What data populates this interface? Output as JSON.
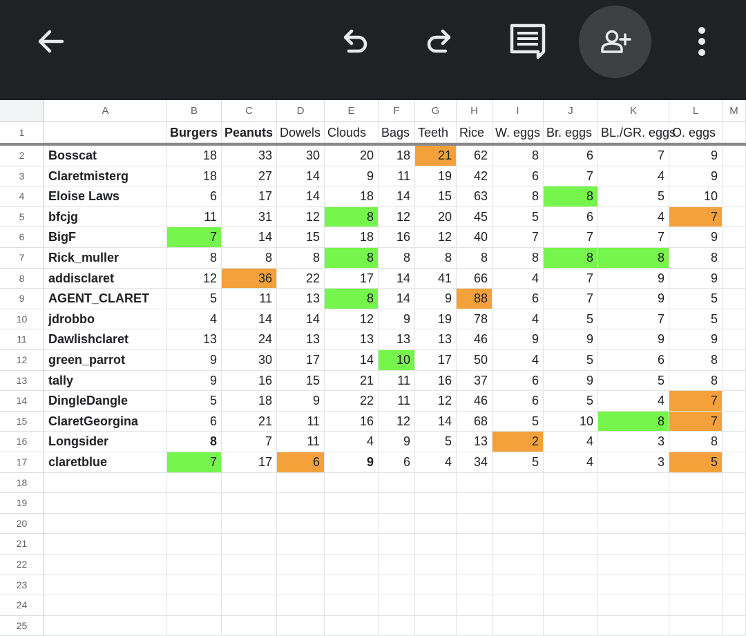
{
  "toolbar": {
    "icons": {
      "back": "arrow-back-icon",
      "undo": "undo-icon",
      "redo": "redo-icon",
      "comment": "comment-icon",
      "share": "person-add-icon",
      "more": "more-vert-icon"
    },
    "colors": {
      "background": "#202124",
      "icon": "#e8eaed",
      "share_bg": "#3c4043"
    }
  },
  "colors": {
    "highlight_green": "#76f54c",
    "highlight_orange": "#f4a13c"
  },
  "sheet": {
    "column_letters": [
      "A",
      "B",
      "C",
      "D",
      "E",
      "F",
      "G",
      "H",
      "I",
      "J",
      "K",
      "L",
      "M"
    ],
    "headers": [
      "",
      "Burgers",
      "Peanuts",
      "Dowels",
      "Clouds",
      "Bags",
      "Teeth",
      "Rice",
      "W. eggs",
      "Br. eggs",
      "BL./GR. eggs",
      "O. eggs",
      ""
    ],
    "header_bold": [
      false,
      true,
      true,
      false,
      false,
      false,
      false,
      false,
      false,
      false,
      false,
      false,
      false
    ],
    "rows": [
      {
        "name": "Bosscat",
        "values": [
          18,
          33,
          30,
          20,
          18,
          21,
          62,
          8,
          6,
          7,
          9
        ],
        "hl": {
          "5": "orange"
        }
      },
      {
        "name": "Claretmisterg",
        "values": [
          18,
          27,
          14,
          9,
          11,
          19,
          42,
          6,
          7,
          4,
          9
        ],
        "hl": {}
      },
      {
        "name": "Eloise Laws",
        "values": [
          6,
          17,
          14,
          18,
          14,
          15,
          63,
          8,
          8,
          5,
          10
        ],
        "hl": {
          "8": "green"
        }
      },
      {
        "name": "bfcjg",
        "values": [
          11,
          31,
          12,
          8,
          12,
          20,
          45,
          5,
          6,
          4,
          7
        ],
        "hl": {
          "3": "green",
          "10": "orange"
        }
      },
      {
        "name": "BigF",
        "values": [
          7,
          14,
          15,
          18,
          16,
          12,
          40,
          7,
          7,
          7,
          9
        ],
        "hl": {
          "0": "green"
        }
      },
      {
        "name": "Rick_muller",
        "values": [
          8,
          8,
          8,
          8,
          8,
          8,
          8,
          8,
          8,
          8,
          8
        ],
        "hl": {
          "3": "green",
          "8": "green",
          "9": "green"
        }
      },
      {
        "name": "addisclaret",
        "values": [
          12,
          36,
          22,
          17,
          14,
          41,
          66,
          4,
          7,
          9,
          9
        ],
        "hl": {
          "1": "orange"
        }
      },
      {
        "name": "AGENT_CLARET",
        "values": [
          5,
          11,
          13,
          8,
          14,
          9,
          88,
          6,
          7,
          9,
          5
        ],
        "hl": {
          "3": "green",
          "6": "orange"
        }
      },
      {
        "name": "jdrobbo",
        "values": [
          4,
          14,
          14,
          12,
          9,
          19,
          78,
          4,
          5,
          7,
          5
        ],
        "hl": {}
      },
      {
        "name": "Dawlishclaret",
        "values": [
          13,
          24,
          13,
          13,
          13,
          13,
          46,
          9,
          9,
          9,
          9
        ],
        "hl": {}
      },
      {
        "name": "green_parrot",
        "values": [
          9,
          30,
          17,
          14,
          10,
          17,
          50,
          4,
          5,
          6,
          8
        ],
        "hl": {
          "4": "green"
        }
      },
      {
        "name": "tally",
        "values": [
          9,
          16,
          15,
          21,
          11,
          16,
          37,
          6,
          9,
          5,
          8
        ],
        "hl": {}
      },
      {
        "name": "DingleDangle",
        "values": [
          5,
          18,
          9,
          22,
          11,
          12,
          46,
          6,
          5,
          4,
          7
        ],
        "hl": {
          "10": "orange"
        }
      },
      {
        "name": "ClaretGeorgina",
        "values": [
          6,
          21,
          11,
          16,
          12,
          14,
          68,
          5,
          10,
          8,
          7
        ],
        "hl": {
          "9": "green",
          "10": "orange"
        }
      },
      {
        "name": "Longsider",
        "values": [
          8,
          7,
          11,
          4,
          9,
          5,
          13,
          2,
          4,
          3,
          8
        ],
        "hl": {
          "7": "orange"
        },
        "bold": {
          "0": true
        }
      },
      {
        "name": "claretblue",
        "values": [
          7,
          17,
          6,
          9,
          6,
          4,
          34,
          5,
          4,
          3,
          5
        ],
        "hl": {
          "0": "green",
          "2": "orange",
          "10": "orange"
        },
        "bold": {
          "3": true
        }
      }
    ],
    "row_numbers": [
      "1",
      "2",
      "3",
      "4",
      "5",
      "6",
      "7",
      "8",
      "9",
      "10",
      "11",
      "12",
      "13",
      "14",
      "15",
      "16",
      "17",
      "18",
      "19",
      "20",
      "21",
      "22",
      "23",
      "24",
      "25"
    ]
  }
}
